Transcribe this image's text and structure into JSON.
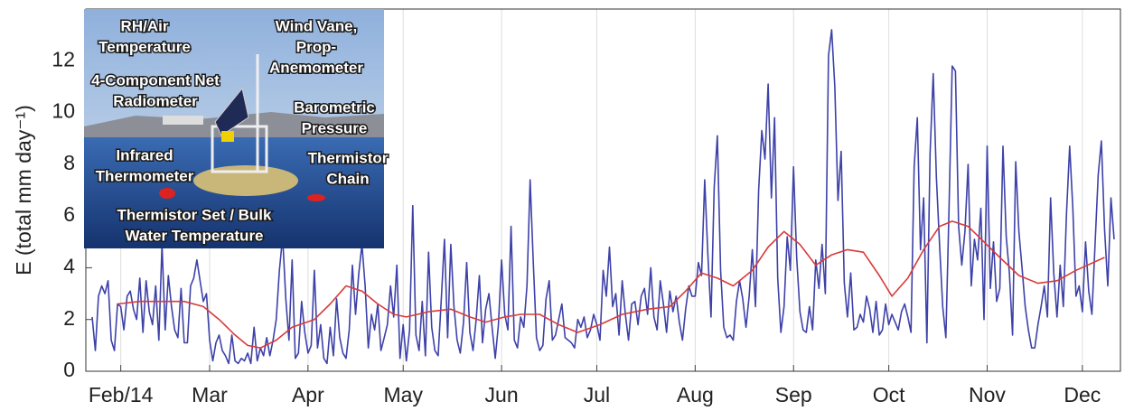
{
  "chart_data": {
    "type": "line",
    "ylabel": "E (total mm day⁻¹)",
    "xlim": [
      21,
      347
    ],
    "ylim": [
      0,
      14
    ],
    "xticks": [
      {
        "value": 32,
        "label": "Feb/14"
      },
      {
        "value": 60,
        "label": "Mar"
      },
      {
        "value": 91,
        "label": "Apr"
      },
      {
        "value": 121,
        "label": "May"
      },
      {
        "value": 152,
        "label": "Jun"
      },
      {
        "value": 182,
        "label": "Jul"
      },
      {
        "value": 213,
        "label": "Aug"
      },
      {
        "value": 244,
        "label": "Sep"
      },
      {
        "value": 274,
        "label": "Oct"
      },
      {
        "value": 305,
        "label": "Nov"
      },
      {
        "value": 335,
        "label": "Dec"
      }
    ],
    "yticks": [
      0,
      2,
      4,
      6,
      8,
      10,
      12
    ],
    "grid": "x",
    "series": [
      {
        "color": "#3d41a8",
        "x": [
          23,
          24,
          25,
          26,
          27,
          28,
          29,
          30,
          31,
          32,
          33,
          34,
          35,
          36,
          37,
          38,
          39,
          40,
          41,
          42,
          43,
          44,
          45,
          46,
          47,
          48,
          49,
          50,
          51,
          52,
          53,
          54,
          55,
          56,
          57,
          58,
          59,
          60,
          61,
          62,
          63,
          64,
          65,
          66,
          67,
          68,
          69,
          70,
          71,
          72,
          73,
          74,
          75,
          76,
          77,
          78,
          79,
          80,
          81,
          82,
          83,
          84,
          85,
          86,
          87,
          88,
          89,
          90,
          91,
          92,
          93,
          94,
          95,
          96,
          97,
          98,
          99,
          100,
          101,
          102,
          103,
          104,
          105,
          106,
          107,
          108,
          109,
          110,
          111,
          112,
          113,
          114,
          115,
          116,
          117,
          118,
          119,
          120,
          121,
          122,
          123,
          124,
          125,
          126,
          127,
          128,
          129,
          130,
          131,
          132,
          133,
          134,
          135,
          136,
          137,
          138,
          139,
          140,
          141,
          142,
          143,
          144,
          145,
          146,
          147,
          148,
          149,
          150,
          151,
          152,
          153,
          154,
          155,
          156,
          157,
          158,
          159,
          160,
          161,
          162,
          163,
          164,
          165,
          166,
          167,
          168,
          169,
          170,
          171,
          172,
          173,
          174,
          175,
          176,
          177,
          178,
          179,
          180,
          181,
          182,
          183,
          184,
          185,
          186,
          187,
          188,
          189,
          190,
          191,
          192,
          193,
          194,
          195,
          196,
          197,
          198,
          199,
          200,
          201,
          202,
          203,
          204,
          205,
          206,
          207,
          208,
          209,
          210,
          211,
          212,
          213,
          214,
          215,
          216,
          217,
          218,
          219,
          220,
          221,
          222,
          223,
          224,
          225,
          226,
          227,
          228,
          229,
          230,
          231,
          232,
          233,
          234,
          235,
          236,
          237,
          238,
          239,
          240,
          241,
          242,
          243,
          244,
          245,
          246,
          247,
          248,
          249,
          250,
          251,
          252,
          253,
          254,
          255,
          256,
          257,
          258,
          259,
          260,
          261,
          262,
          263,
          264,
          265,
          266,
          267,
          268,
          269,
          270,
          271,
          272,
          273,
          274,
          275,
          276,
          277,
          278,
          279,
          280,
          281,
          282,
          283,
          284,
          285,
          286,
          287,
          288,
          289,
          290,
          291,
          292,
          293,
          294,
          295,
          296,
          297,
          298,
          299,
          300,
          301,
          302,
          303,
          304,
          305,
          306,
          307,
          308,
          309,
          310,
          311,
          312,
          313,
          314,
          315,
          316,
          317,
          318,
          319,
          320,
          321,
          322,
          323,
          324,
          325,
          326,
          327,
          328,
          329,
          330,
          331,
          332,
          333,
          334,
          335,
          336,
          337,
          338,
          339,
          340,
          341,
          342,
          343,
          344,
          345
        ],
        "values": [
          2.1,
          0.8,
          2.9,
          3.3,
          3.0,
          3.5,
          1.2,
          0.8,
          2.6,
          2.5,
          1.6,
          2.9,
          3.1,
          2.4,
          2.0,
          3.6,
          1.5,
          3.5,
          2.3,
          1.8,
          3.3,
          1.2,
          4.9,
          1.6,
          3.7,
          2.5,
          1.6,
          1.3,
          3.2,
          1.1,
          1.1,
          3.3,
          3.6,
          4.3,
          3.5,
          2.7,
          3.0,
          1.2,
          0.4,
          1.1,
          1.4,
          0.8,
          0.6,
          0.3,
          1.4,
          0.4,
          0.3,
          0.5,
          0.4,
          0.7,
          0.3,
          1.7,
          0.4,
          0.9,
          0.6,
          1.3,
          0.6,
          1.2,
          2.0,
          3.9,
          5.2,
          2.8,
          1.2,
          4.3,
          0.5,
          0.7,
          2.7,
          1.5,
          0.7,
          1.0,
          3.9,
          0.9,
          1.8,
          0.5,
          0.3,
          1.7,
          0.6,
          2.8,
          1.3,
          0.7,
          0.5,
          1.6,
          4.1,
          2.2,
          3.8,
          4.9,
          3.3,
          0.9,
          2.2,
          1.6,
          2.6,
          0.8,
          1.3,
          1.8,
          3.3,
          2.1,
          4.1,
          0.5,
          1.8,
          0.4,
          1.6,
          6.4,
          1.4,
          0.8,
          2.7,
          0.6,
          4.6,
          1.7,
          0.8,
          0.6,
          2.8,
          5.1,
          1.3,
          4.9,
          2.5,
          1.2,
          0.7,
          1.9,
          4.2,
          1.5,
          0.8,
          2.0,
          3.7,
          1.1,
          2.4,
          3.0,
          1.7,
          0.5,
          1.8,
          4.3,
          2.2,
          1.6,
          5.6,
          1.2,
          0.9,
          2.1,
          1.7,
          3.3,
          7.4,
          4.2,
          1.3,
          0.8,
          1.0,
          2.8,
          3.5,
          1.2,
          1.4,
          2.0,
          2.6,
          1.3,
          1.2,
          1.1,
          0.9,
          2.0,
          1.7,
          2.1,
          1.3,
          1.6,
          2.2,
          1.8,
          1.2,
          3.9,
          2.9,
          4.8,
          2.5,
          3.0,
          1.4,
          3.5,
          2.2,
          1.2,
          2.6,
          2.7,
          1.8,
          2.9,
          3.2,
          2.2,
          4.0,
          2.1,
          1.6,
          3.5,
          2.6,
          1.5,
          3.1,
          2.3,
          2.9,
          1.9,
          1.2,
          2.4,
          3.3,
          2.9,
          2.9,
          4.2,
          3.7,
          7.4,
          4.5,
          2.1,
          7.1,
          9.1,
          3.9,
          1.7,
          1.3,
          1.4,
          1.2,
          2.7,
          3.5,
          2.8,
          1.7,
          2.9,
          4.7,
          2.5,
          7.0,
          9.3,
          8.2,
          11.1,
          6.7,
          9.8,
          3.6,
          1.5,
          2.5,
          5.2,
          3.9,
          7.9,
          4.4,
          2.3,
          1.6,
          1.5,
          2.5,
          1.6,
          4.3,
          3.2,
          4.9,
          3.0,
          12.2,
          13.2,
          11.0,
          6.6,
          8.5,
          3.4,
          2.1,
          3.8,
          1.6,
          1.7,
          2.2,
          1.9,
          2.9,
          2.4,
          1.5,
          2.7,
          1.4,
          1.6,
          2.6,
          1.8,
          2.2,
          1.9,
          1.6,
          2.3,
          2.6,
          2.1,
          1.5,
          7.9,
          9.8,
          4.7,
          6.7,
          1.1,
          8.4,
          11.5,
          7.5,
          4.9,
          2.5,
          1.3,
          6.3,
          11.8,
          11.6,
          5.6,
          4.1,
          5.4,
          8.0,
          3.3,
          5.1,
          4.3,
          6.3,
          2.0,
          8.7,
          3.2,
          5.0,
          2.7,
          3.2,
          8.7,
          5.2,
          3.8,
          1.4,
          8.1,
          5.4,
          4.0,
          2.5,
          1.6,
          0.9,
          0.9,
          1.8,
          2.5,
          3.3,
          2.1,
          6.7,
          3.8,
          2.1,
          4.1,
          2.5,
          6.1,
          8.7,
          6.3,
          2.9,
          3.3,
          2.3,
          5.0,
          3.1,
          2.2,
          4.9,
          7.6,
          8.9,
          5.5,
          3.3,
          6.7,
          5.1
        ]
      },
      {
        "color": "#d83a3a",
        "x": [
          31,
          38,
          45,
          52,
          58,
          63,
          68,
          72,
          76,
          81,
          86,
          93,
          98,
          103,
          108,
          113,
          118,
          122,
          129,
          136,
          142,
          147,
          153,
          158,
          164,
          170,
          176,
          183,
          190,
          198,
          205,
          210,
          215,
          220,
          225,
          231,
          236,
          241,
          246,
          251,
          256,
          261,
          266,
          271,
          275,
          280,
          285,
          290,
          294,
          299,
          304,
          309,
          315,
          321,
          327,
          333,
          342
        ],
        "values": [
          2.6,
          2.7,
          2.7,
          2.7,
          2.5,
          2.0,
          1.4,
          1.0,
          0.9,
          1.2,
          1.7,
          2.0,
          2.6,
          3.3,
          3.1,
          2.6,
          2.2,
          2.1,
          2.3,
          2.4,
          2.1,
          1.9,
          2.1,
          2.2,
          2.2,
          1.8,
          1.5,
          1.8,
          2.2,
          2.4,
          2.5,
          3.1,
          3.8,
          3.6,
          3.3,
          3.9,
          4.8,
          5.4,
          4.9,
          4.1,
          4.5,
          4.7,
          4.6,
          3.7,
          2.9,
          3.6,
          4.7,
          5.6,
          5.8,
          5.6,
          5.0,
          4.4,
          3.7,
          3.4,
          3.5,
          3.9,
          4.4
        ]
      }
    ],
    "inset_labels": [
      [
        "RH/Air",
        "Temperature"
      ],
      [
        "Wind Vane,",
        "Prop-",
        "Anemometer"
      ],
      [
        "4-Component Net",
        "Radiometer"
      ],
      [
        "Barometric",
        "Pressure"
      ],
      [
        "Infrared",
        "Thermometer"
      ],
      [
        "Thermistor",
        "Chain"
      ],
      [
        "Thermistor Set / Bulk",
        "Water Temperature"
      ]
    ]
  }
}
